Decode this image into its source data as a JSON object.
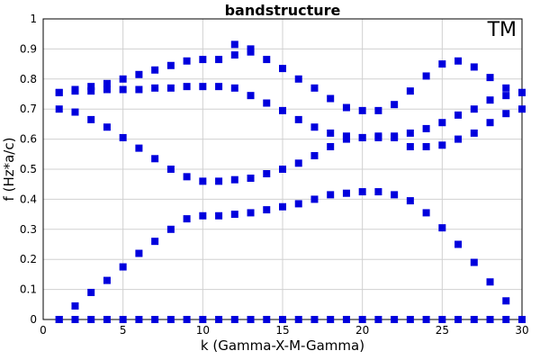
{
  "chart_data": {
    "type": "scatter",
    "title": "bandstructure",
    "annotation": "TM",
    "xlabel": "k (Gamma-X-M-Gamma)",
    "ylabel": "f (Hz*a/c)",
    "xlim": [
      0,
      30
    ],
    "ylim": [
      0,
      1
    ],
    "xticks": [
      0,
      5,
      10,
      15,
      20,
      25,
      30
    ],
    "yticks": [
      0,
      0.1,
      0.2,
      0.3,
      0.4,
      0.5,
      0.6,
      0.7,
      0.8,
      0.9,
      1
    ],
    "grid": true,
    "marker": "square",
    "color": "#0000dd",
    "x": [
      1,
      2,
      3,
      4,
      5,
      6,
      7,
      8,
      9,
      10,
      11,
      12,
      13,
      14,
      15,
      16,
      17,
      18,
      19,
      20,
      21,
      22,
      23,
      24,
      25,
      26,
      27,
      28,
      29,
      30
    ],
    "series": [
      {
        "values": [
          0,
          0,
          0,
          0,
          0,
          0,
          0,
          0,
          0,
          0,
          0,
          0,
          0,
          0,
          0,
          0,
          0,
          0,
          0,
          0,
          0,
          0,
          0,
          0,
          0,
          0,
          0,
          0,
          0,
          0
        ]
      },
      {
        "values": [
          0,
          0.045,
          0.09,
          0.13,
          0.175,
          0.22,
          0.26,
          0.3,
          0.335,
          0.345,
          0.345,
          0.35,
          0.355,
          0.365,
          0.375,
          0.385,
          0.4,
          0.415,
          0.42,
          0.425,
          0.425,
          0.415,
          0.395,
          0.355,
          0.305,
          0.25,
          0.19,
          0.125,
          0.062,
          0
        ]
      },
      {
        "values": [
          0.7,
          0.69,
          0.665,
          0.64,
          0.605,
          0.57,
          0.535,
          0.5,
          0.475,
          0.46,
          0.46,
          0.465,
          0.47,
          0.485,
          0.5,
          0.52,
          0.545,
          0.575,
          0.6,
          0.605,
          0.605,
          0.605,
          0.575,
          0.575,
          0.58,
          0.6,
          0.62,
          0.655,
          0.685,
          0.7
        ]
      },
      {
        "values": [
          0.755,
          0.76,
          0.76,
          0.765,
          0.765,
          0.765,
          0.77,
          0.77,
          0.775,
          0.775,
          0.775,
          0.77,
          0.745,
          0.72,
          0.695,
          0.665,
          0.64,
          0.62,
          0.61,
          0.605,
          0.61,
          0.61,
          0.62,
          0.635,
          0.655,
          0.68,
          0.7,
          0.73,
          0.745,
          0.755
        ]
      },
      {
        "values": [
          0.755,
          0.765,
          0.775,
          0.785,
          0.8,
          0.815,
          0.83,
          0.845,
          0.86,
          0.865,
          0.865,
          0.88,
          0.89,
          0.865,
          0.835,
          0.8,
          0.77,
          0.735,
          0.705,
          0.695,
          0.695,
          0.715,
          0.76,
          0.81,
          0.85,
          0.86,
          0.84,
          0.805,
          0.77,
          0.755
        ]
      },
      {
        "values": [
          null,
          null,
          null,
          null,
          null,
          null,
          null,
          null,
          null,
          null,
          null,
          0.915,
          0.9,
          null,
          null,
          null,
          null,
          null,
          null,
          null,
          null,
          null,
          null,
          null,
          null,
          null,
          null,
          null,
          null,
          null
        ]
      }
    ]
  }
}
